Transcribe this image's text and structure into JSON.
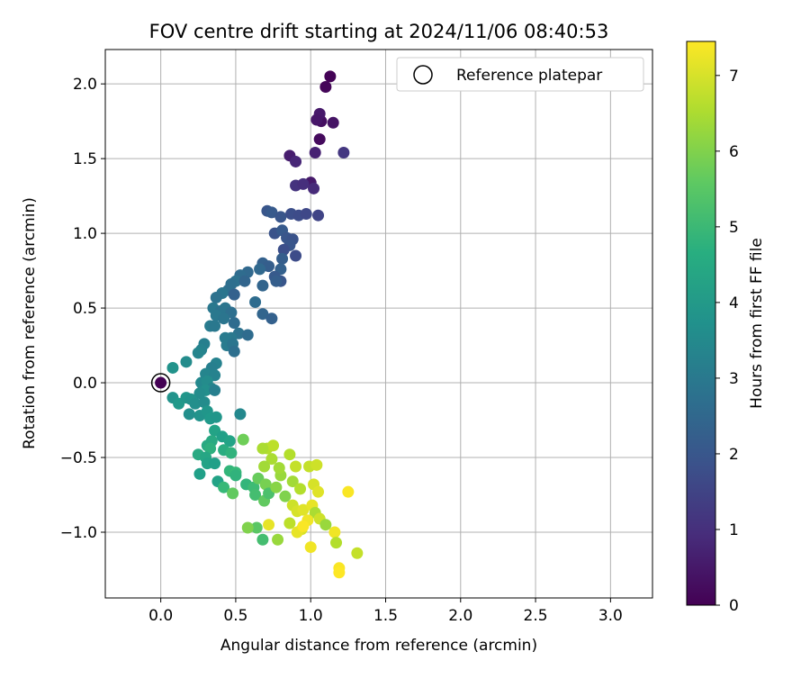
{
  "chart_data": {
    "type": "scatter",
    "title": "FOV centre drift starting at 2024/11/06 08:40:53",
    "xlabel": "Angular distance from reference (arcmin)",
    "ylabel": "Rotation from reference (arcmin)",
    "xlim": [
      -0.37,
      3.28
    ],
    "ylim": [
      -1.44,
      2.23
    ],
    "xticks": [
      0.0,
      0.5,
      1.0,
      1.5,
      2.0,
      2.5,
      3.0
    ],
    "xtick_labels": [
      "0.0",
      "0.5",
      "1.0",
      "1.5",
      "2.0",
      "2.5",
      "3.0"
    ],
    "yticks": [
      -1.0,
      -0.5,
      0.0,
      0.5,
      1.0,
      1.5,
      2.0
    ],
    "ytick_labels": [
      "−1.0",
      "−0.5",
      "0.0",
      "0.5",
      "1.0",
      "1.5",
      "2.0"
    ],
    "grid": true,
    "colormap": "viridis",
    "colorbar": {
      "label": "Hours from first FF file",
      "range": [
        0,
        7.45
      ],
      "ticks": [
        0,
        1,
        2,
        3,
        4,
        5,
        6,
        7
      ],
      "tick_labels": [
        "0",
        "1",
        "2",
        "3",
        "4",
        "5",
        "6",
        "7"
      ]
    },
    "legend": {
      "position": "top-right",
      "entries": [
        {
          "label": "Reference platepar",
          "marker": "open-circle"
        }
      ]
    },
    "reference_point": {
      "x": 0.0,
      "y": 0.0
    },
    "series": [
      {
        "points": [
          {
            "x": 0.0,
            "y": 0.0,
            "t": 0.0
          },
          {
            "x": 1.13,
            "y": 2.05,
            "t": 0.05
          },
          {
            "x": 1.1,
            "y": 1.98,
            "t": 0.1
          },
          {
            "x": 1.07,
            "y": 1.75,
            "t": 0.3
          },
          {
            "x": 1.15,
            "y": 1.74,
            "t": 0.4
          },
          {
            "x": 1.06,
            "y": 1.8,
            "t": 0.5
          },
          {
            "x": 1.04,
            "y": 1.76,
            "t": 0.45
          },
          {
            "x": 1.06,
            "y": 1.63,
            "t": 0.2
          },
          {
            "x": 1.03,
            "y": 1.54,
            "t": 0.7
          },
          {
            "x": 1.22,
            "y": 1.54,
            "t": 1.2
          },
          {
            "x": 0.86,
            "y": 1.52,
            "t": 0.6
          },
          {
            "x": 0.9,
            "y": 1.48,
            "t": 0.8
          },
          {
            "x": 1.0,
            "y": 1.34,
            "t": 0.5
          },
          {
            "x": 1.02,
            "y": 1.3,
            "t": 0.9
          },
          {
            "x": 0.9,
            "y": 1.32,
            "t": 1.1
          },
          {
            "x": 0.95,
            "y": 1.33,
            "t": 1.0
          },
          {
            "x": 0.71,
            "y": 1.15,
            "t": 2.0
          },
          {
            "x": 0.74,
            "y": 1.14,
            "t": 2.1
          },
          {
            "x": 0.8,
            "y": 1.11,
            "t": 2.0
          },
          {
            "x": 0.87,
            "y": 1.13,
            "t": 1.8
          },
          {
            "x": 0.92,
            "y": 1.12,
            "t": 1.7
          },
          {
            "x": 0.97,
            "y": 1.13,
            "t": 1.6
          },
          {
            "x": 1.05,
            "y": 1.12,
            "t": 1.5
          },
          {
            "x": 0.76,
            "y": 1.0,
            "t": 1.9
          },
          {
            "x": 0.81,
            "y": 1.02,
            "t": 2.1
          },
          {
            "x": 0.84,
            "y": 0.97,
            "t": 2.0
          },
          {
            "x": 0.88,
            "y": 0.96,
            "t": 1.9
          },
          {
            "x": 0.86,
            "y": 0.92,
            "t": 2.0
          },
          {
            "x": 0.82,
            "y": 0.89,
            "t": 1.8
          },
          {
            "x": 0.9,
            "y": 0.85,
            "t": 1.7
          },
          {
            "x": 0.81,
            "y": 0.83,
            "t": 2.2
          },
          {
            "x": 0.68,
            "y": 0.8,
            "t": 2.3
          },
          {
            "x": 0.72,
            "y": 0.78,
            "t": 2.2
          },
          {
            "x": 0.66,
            "y": 0.76,
            "t": 2.5
          },
          {
            "x": 0.58,
            "y": 0.74,
            "t": 2.5
          },
          {
            "x": 0.53,
            "y": 0.72,
            "t": 2.6
          },
          {
            "x": 0.8,
            "y": 0.76,
            "t": 2.3
          },
          {
            "x": 0.76,
            "y": 0.71,
            "t": 2.1
          },
          {
            "x": 0.8,
            "y": 0.68,
            "t": 2.0
          },
          {
            "x": 0.77,
            "y": 0.68,
            "t": 2.2
          },
          {
            "x": 0.5,
            "y": 0.68,
            "t": 2.8
          },
          {
            "x": 0.47,
            "y": 0.66,
            "t": 2.7
          },
          {
            "x": 0.56,
            "y": 0.68,
            "t": 2.4
          },
          {
            "x": 0.68,
            "y": 0.65,
            "t": 2.4
          },
          {
            "x": 0.45,
            "y": 0.62,
            "t": 2.7
          },
          {
            "x": 0.41,
            "y": 0.6,
            "t": 2.9
          },
          {
            "x": 0.49,
            "y": 0.59,
            "t": 2.3
          },
          {
            "x": 0.37,
            "y": 0.57,
            "t": 2.8
          },
          {
            "x": 0.63,
            "y": 0.54,
            "t": 2.6
          },
          {
            "x": 0.35,
            "y": 0.5,
            "t": 3.0
          },
          {
            "x": 0.4,
            "y": 0.48,
            "t": 2.8
          },
          {
            "x": 0.43,
            "y": 0.5,
            "t": 2.9
          },
          {
            "x": 0.47,
            "y": 0.47,
            "t": 2.7
          },
          {
            "x": 0.37,
            "y": 0.45,
            "t": 3.0
          },
          {
            "x": 0.68,
            "y": 0.46,
            "t": 2.4
          },
          {
            "x": 0.74,
            "y": 0.43,
            "t": 2.3
          },
          {
            "x": 0.42,
            "y": 0.43,
            "t": 2.9
          },
          {
            "x": 0.49,
            "y": 0.4,
            "t": 2.6
          },
          {
            "x": 0.33,
            "y": 0.38,
            "t": 3.1
          },
          {
            "x": 0.36,
            "y": 0.38,
            "t": 3.0
          },
          {
            "x": 0.52,
            "y": 0.33,
            "t": 2.8
          },
          {
            "x": 0.58,
            "y": 0.32,
            "t": 2.6
          },
          {
            "x": 0.47,
            "y": 0.3,
            "t": 3.0
          },
          {
            "x": 0.43,
            "y": 0.3,
            "t": 3.1
          },
          {
            "x": 0.29,
            "y": 0.26,
            "t": 3.2
          },
          {
            "x": 0.44,
            "y": 0.25,
            "t": 3.1
          },
          {
            "x": 0.48,
            "y": 0.26,
            "t": 2.9
          },
          {
            "x": 0.27,
            "y": 0.22,
            "t": 3.3
          },
          {
            "x": 0.25,
            "y": 0.2,
            "t": 3.4
          },
          {
            "x": 0.49,
            "y": 0.21,
            "t": 2.7
          },
          {
            "x": 0.17,
            "y": 0.14,
            "t": 3.6
          },
          {
            "x": 0.37,
            "y": 0.13,
            "t": 3.3
          },
          {
            "x": 0.34,
            "y": 0.1,
            "t": 3.2
          },
          {
            "x": 0.08,
            "y": 0.1,
            "t": 3.8
          },
          {
            "x": 0.3,
            "y": 0.06,
            "t": 3.4
          },
          {
            "x": 0.36,
            "y": 0.05,
            "t": 3.3
          },
          {
            "x": 0.27,
            "y": 0.0,
            "t": 3.5
          },
          {
            "x": 0.31,
            "y": 0.01,
            "t": 3.6
          },
          {
            "x": 0.34,
            "y": -0.04,
            "t": 3.4
          },
          {
            "x": 0.3,
            "y": -0.05,
            "t": 3.7
          },
          {
            "x": 0.36,
            "y": -0.05,
            "t": 3.2
          },
          {
            "x": 0.26,
            "y": -0.07,
            "t": 3.6
          },
          {
            "x": 0.08,
            "y": -0.1,
            "t": 3.8
          },
          {
            "x": 0.12,
            "y": -0.14,
            "t": 4.0
          },
          {
            "x": 0.17,
            "y": -0.1,
            "t": 3.9
          },
          {
            "x": 0.2,
            "y": -0.11,
            "t": 3.8
          },
          {
            "x": 0.23,
            "y": -0.14,
            "t": 3.7
          },
          {
            "x": 0.29,
            "y": -0.13,
            "t": 3.6
          },
          {
            "x": 0.19,
            "y": -0.21,
            "t": 3.7
          },
          {
            "x": 0.26,
            "y": -0.22,
            "t": 3.8
          },
          {
            "x": 0.31,
            "y": -0.19,
            "t": 3.9
          },
          {
            "x": 0.33,
            "y": -0.24,
            "t": 4.0
          },
          {
            "x": 0.37,
            "y": -0.23,
            "t": 3.9
          },
          {
            "x": 0.53,
            "y": -0.21,
            "t": 3.5
          },
          {
            "x": 0.36,
            "y": -0.32,
            "t": 4.3
          },
          {
            "x": 0.41,
            "y": -0.36,
            "t": 4.2
          },
          {
            "x": 0.46,
            "y": -0.39,
            "t": 4.3
          },
          {
            "x": 0.34,
            "y": -0.39,
            "t": 4.5
          },
          {
            "x": 0.31,
            "y": -0.42,
            "t": 4.5
          },
          {
            "x": 0.33,
            "y": -0.44,
            "t": 4.7
          },
          {
            "x": 0.42,
            "y": -0.45,
            "t": 4.6
          },
          {
            "x": 0.47,
            "y": -0.47,
            "t": 4.8
          },
          {
            "x": 0.55,
            "y": -0.38,
            "t": 5.8
          },
          {
            "x": 0.25,
            "y": -0.48,
            "t": 4.5
          },
          {
            "x": 0.3,
            "y": -0.5,
            "t": 4.4
          },
          {
            "x": 0.31,
            "y": -0.54,
            "t": 4.3
          },
          {
            "x": 0.36,
            "y": -0.54,
            "t": 4.2
          },
          {
            "x": 0.26,
            "y": -0.61,
            "t": 4.2
          },
          {
            "x": 0.46,
            "y": -0.59,
            "t": 4.9
          },
          {
            "x": 0.5,
            "y": -0.6,
            "t": 5.0
          },
          {
            "x": 0.5,
            "y": -0.62,
            "t": 4.8
          },
          {
            "x": 0.38,
            "y": -0.66,
            "t": 4.3
          },
          {
            "x": 0.42,
            "y": -0.7,
            "t": 5.0
          },
          {
            "x": 0.48,
            "y": -0.74,
            "t": 5.6
          },
          {
            "x": 0.57,
            "y": -0.68,
            "t": 4.9
          },
          {
            "x": 0.62,
            "y": -0.7,
            "t": 5.1
          },
          {
            "x": 0.63,
            "y": -0.75,
            "t": 5.2
          },
          {
            "x": 0.65,
            "y": -0.64,
            "t": 5.7
          },
          {
            "x": 0.69,
            "y": -0.79,
            "t": 5.6
          },
          {
            "x": 0.7,
            "y": -0.68,
            "t": 5.9
          },
          {
            "x": 0.72,
            "y": -0.74,
            "t": 5.3
          },
          {
            "x": 0.77,
            "y": -0.7,
            "t": 6.1
          },
          {
            "x": 0.8,
            "y": -0.62,
            "t": 6.3
          },
          {
            "x": 0.79,
            "y": -0.57,
            "t": 6.4
          },
          {
            "x": 0.74,
            "y": -0.51,
            "t": 6.5
          },
          {
            "x": 0.69,
            "y": -0.56,
            "t": 6.4
          },
          {
            "x": 0.71,
            "y": -0.44,
            "t": 6.6
          },
          {
            "x": 0.75,
            "y": -0.42,
            "t": 6.7
          },
          {
            "x": 0.68,
            "y": -0.44,
            "t": 6.5
          },
          {
            "x": 0.86,
            "y": -0.48,
            "t": 6.6
          },
          {
            "x": 0.9,
            "y": -0.56,
            "t": 6.8
          },
          {
            "x": 0.88,
            "y": -0.66,
            "t": 6.4
          },
          {
            "x": 0.83,
            "y": -0.76,
            "t": 6.0
          },
          {
            "x": 0.93,
            "y": -0.71,
            "t": 6.6
          },
          {
            "x": 0.88,
            "y": -0.82,
            "t": 6.9
          },
          {
            "x": 0.91,
            "y": -0.86,
            "t": 7.0
          },
          {
            "x": 0.95,
            "y": -0.85,
            "t": 7.1
          },
          {
            "x": 0.99,
            "y": -0.56,
            "t": 6.8
          },
          {
            "x": 1.04,
            "y": -0.55,
            "t": 6.9
          },
          {
            "x": 1.02,
            "y": -0.68,
            "t": 7.0
          },
          {
            "x": 1.05,
            "y": -0.73,
            "t": 7.1
          },
          {
            "x": 1.01,
            "y": -0.82,
            "t": 7.2
          },
          {
            "x": 1.03,
            "y": -0.87,
            "t": 6.5
          },
          {
            "x": 0.98,
            "y": -0.92,
            "t": 7.3
          },
          {
            "x": 1.06,
            "y": -0.91,
            "t": 6.9
          },
          {
            "x": 1.1,
            "y": -0.95,
            "t": 6.3
          },
          {
            "x": 0.94,
            "y": -0.98,
            "t": 7.0
          },
          {
            "x": 0.86,
            "y": -0.94,
            "t": 6.7
          },
          {
            "x": 0.91,
            "y": -1.0,
            "t": 7.2
          },
          {
            "x": 0.95,
            "y": -0.96,
            "t": 7.4
          },
          {
            "x": 1.16,
            "y": -1.0,
            "t": 7.3
          },
          {
            "x": 1.17,
            "y": -1.07,
            "t": 6.6
          },
          {
            "x": 1.0,
            "y": -1.1,
            "t": 7.3
          },
          {
            "x": 1.25,
            "y": -0.73,
            "t": 7.4
          },
          {
            "x": 1.31,
            "y": -1.14,
            "t": 6.8
          },
          {
            "x": 1.19,
            "y": -1.24,
            "t": 7.4
          },
          {
            "x": 1.19,
            "y": -1.27,
            "t": 7.45
          },
          {
            "x": 0.64,
            "y": -0.97,
            "t": 5.5
          },
          {
            "x": 0.58,
            "y": -0.97,
            "t": 6.0
          },
          {
            "x": 0.72,
            "y": -0.95,
            "t": 7.2
          },
          {
            "x": 0.68,
            "y": -1.05,
            "t": 5.2
          },
          {
            "x": 0.78,
            "y": -1.05,
            "t": 6.3
          }
        ]
      }
    ]
  }
}
